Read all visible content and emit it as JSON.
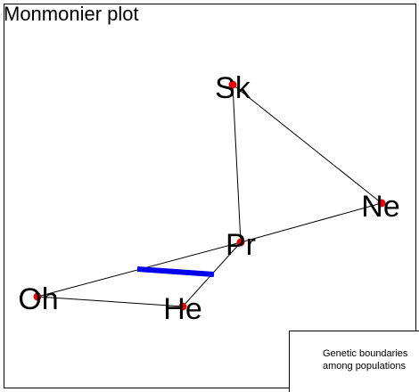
{
  "title": "Monmonier plot",
  "nodes": [
    {
      "id": "Sk",
      "label": "Sk"
    },
    {
      "id": "Ne",
      "label": "Ne"
    },
    {
      "id": "Pr",
      "label": "Pr"
    },
    {
      "id": "Oh",
      "label": "Oh"
    },
    {
      "id": "He",
      "label": "He"
    }
  ],
  "edges": [
    [
      "Sk",
      "Ne"
    ],
    [
      "Sk",
      "Pr"
    ],
    [
      "Ne",
      "Pr"
    ],
    [
      "Pr",
      "Oh"
    ],
    [
      "Pr",
      "He"
    ],
    [
      "Oh",
      "He"
    ]
  ],
  "legend": {
    "line1": "Genetic boundaries",
    "line2": "among populations"
  },
  "colors": {
    "node": "#ee0000",
    "boundary": "#0000ee",
    "edge": "#000000"
  }
}
